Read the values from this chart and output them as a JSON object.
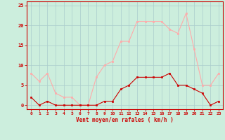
{
  "hours": [
    0,
    1,
    2,
    3,
    4,
    5,
    6,
    7,
    8,
    9,
    10,
    11,
    12,
    13,
    14,
    15,
    16,
    17,
    18,
    19,
    20,
    21,
    22,
    23
  ],
  "vent_moyen": [
    2,
    0,
    1,
    0,
    0,
    0,
    0,
    0,
    0,
    1,
    1,
    4,
    5,
    7,
    7,
    7,
    7,
    8,
    5,
    5,
    4,
    3,
    0,
    1
  ],
  "en_rafales": [
    8,
    6,
    8,
    3,
    2,
    2,
    0,
    0,
    7,
    10,
    11,
    16,
    16,
    21,
    21,
    21,
    21,
    19,
    18,
    23,
    14,
    5,
    5,
    8
  ],
  "color_moyen": "#cc0000",
  "color_rafales": "#ffaaaa",
  "bg_color": "#cceedd",
  "grid_color": "#aacccc",
  "xlabel": "Vent moyen/en rafales ( km/h )",
  "xlabel_color": "#cc0000",
  "ylim": [
    -1,
    26
  ],
  "yticks": [
    0,
    5,
    10,
    15,
    20,
    25
  ],
  "spine_color": "#cc0000"
}
